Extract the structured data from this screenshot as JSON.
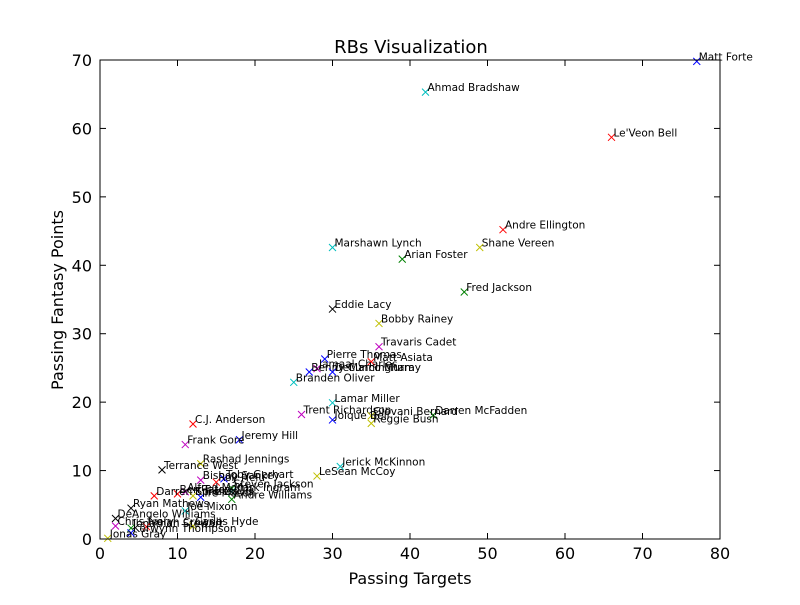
{
  "chart_data": {
    "type": "scatter",
    "title": "RBs Visualization",
    "xlabel": "Passing Targets",
    "ylabel": "Passing Fantasy Points",
    "xlim": [
      0,
      80
    ],
    "ylim": [
      0,
      70
    ],
    "xticks": [
      0,
      10,
      20,
      30,
      40,
      50,
      60,
      70,
      80
    ],
    "yticks": [
      0,
      10,
      20,
      30,
      40,
      50,
      60,
      70
    ],
    "marker": "x",
    "palette": [
      "#0000ff",
      "#008000",
      "#ff0000",
      "#00bfbf",
      "#bf00bf",
      "#bfbf00",
      "#000000"
    ],
    "points": [
      {
        "name": "Matt Forte",
        "x": 77,
        "y": 69.8,
        "color": "#0000ff"
      },
      {
        "name": "Ahmad Bradshaw",
        "x": 42,
        "y": 65.3,
        "color": "#00bfbf"
      },
      {
        "name": "Le'Veon Bell",
        "x": 66,
        "y": 58.7,
        "color": "#ff0000"
      },
      {
        "name": "Andre Ellington",
        "x": 52,
        "y": 45.2,
        "color": "#ff0000"
      },
      {
        "name": "Shane Vereen",
        "x": 49,
        "y": 42.6,
        "color": "#bfbf00"
      },
      {
        "name": "Marshawn Lynch",
        "x": 30,
        "y": 42.6,
        "color": "#00bfbf"
      },
      {
        "name": "Arian Foster",
        "x": 39,
        "y": 40.9,
        "color": "#008000"
      },
      {
        "name": "Fred Jackson",
        "x": 47,
        "y": 36.1,
        "color": "#008000"
      },
      {
        "name": "Eddie Lacy",
        "x": 30,
        "y": 33.6,
        "color": "#000000"
      },
      {
        "name": "Bobby Rainey",
        "x": 36,
        "y": 31.5,
        "color": "#bfbf00"
      },
      {
        "name": "Travaris Cadet",
        "x": 36,
        "y": 28.1,
        "color": "#bf00bf"
      },
      {
        "name": "Pierre Thomas",
        "x": 29,
        "y": 26.3,
        "color": "#0000ff"
      },
      {
        "name": "Matt Asiata",
        "x": 35,
        "y": 25.9,
        "color": "#ff0000"
      },
      {
        "name": "Jamaal Charles",
        "x": 28,
        "y": 24.9,
        "color": "#bf00bf"
      },
      {
        "name": "Benny Cunningham",
        "x": 27,
        "y": 24.4,
        "color": "#0000ff"
      },
      {
        "name": "DeMarco Murray",
        "x": 30,
        "y": 24.4,
        "color": "#0000ff"
      },
      {
        "name": "Branden Oliver",
        "x": 25,
        "y": 22.9,
        "color": "#00bfbf"
      },
      {
        "name": "Lamar Miller",
        "x": 30,
        "y": 19.9,
        "color": "#00bfbf"
      },
      {
        "name": "Darren McFadden",
        "x": 43,
        "y": 18.1,
        "color": "#008000"
      },
      {
        "name": "Trent Richardson",
        "x": 26,
        "y": 18.2,
        "color": "#bf00bf"
      },
      {
        "name": "Giovani Bernard",
        "x": 35,
        "y": 18.0,
        "color": "#bfbf00"
      },
      {
        "name": "Joique Bell",
        "x": 30,
        "y": 17.4,
        "color": "#0000ff"
      },
      {
        "name": "Reggie Bush",
        "x": 35,
        "y": 16.9,
        "color": "#bfbf00"
      },
      {
        "name": "C.J. Anderson",
        "x": 12,
        "y": 16.8,
        "color": "#ff0000"
      },
      {
        "name": "Jeremy Hill",
        "x": 18,
        "y": 14.5,
        "color": "#0000ff"
      },
      {
        "name": "Frank Gore",
        "x": 11,
        "y": 13.8,
        "color": "#bf00bf"
      },
      {
        "name": "Rashad Jennings",
        "x": 13,
        "y": 11.0,
        "color": "#bfbf00"
      },
      {
        "name": "Jerick McKinnon",
        "x": 31,
        "y": 10.6,
        "color": "#00bfbf"
      },
      {
        "name": "Terrance West",
        "x": 8,
        "y": 10.1,
        "color": "#000000"
      },
      {
        "name": "LeSean McCoy",
        "x": 28,
        "y": 9.2,
        "color": "#bfbf00"
      },
      {
        "name": "Bishop Sankey",
        "x": 13,
        "y": 8.6,
        "color": "#bf00bf"
      },
      {
        "name": "Toby Gerhart",
        "x": 16,
        "y": 8.8,
        "color": "#0000ff"
      },
      {
        "name": "Roy Helu",
        "x": 15,
        "y": 8.3,
        "color": "#ff0000"
      },
      {
        "name": "Steven Jackson",
        "x": 17,
        "y": 7.4,
        "color": "#008000"
      },
      {
        "name": "Mark Ingram",
        "x": 17,
        "y": 6.9,
        "color": "#00bfbf"
      },
      {
        "name": "Alfred Morris",
        "x": 11,
        "y": 6.9,
        "color": "#bf00bf"
      },
      {
        "name": "Ben Tate",
        "x": 10,
        "y": 6.6,
        "color": "#ff0000"
      },
      {
        "name": "Knile Davis",
        "x": 12,
        "y": 6.3,
        "color": "#bfbf00"
      },
      {
        "name": "Tre Mason",
        "x": 13,
        "y": 6.1,
        "color": "#0000ff"
      },
      {
        "name": "Darren Sproles",
        "x": 7,
        "y": 6.3,
        "color": "#ff0000"
      },
      {
        "name": "Andre Williams",
        "x": 17,
        "y": 5.8,
        "color": "#008000"
      },
      {
        "name": "Ryan Mathews",
        "x": 4,
        "y": 4.5,
        "color": "#000000"
      },
      {
        "name": "Joe Mixon",
        "x": 11,
        "y": 4.1,
        "color": "#00bfbf"
      },
      {
        "name": "DeAngelo Williams",
        "x": 2,
        "y": 3.0,
        "color": "#000000"
      },
      {
        "name": "Carlos Hyde",
        "x": 12,
        "y": 1.9,
        "color": "#bfbf00"
      },
      {
        "name": "Chris Ivory",
        "x": 2,
        "y": 1.9,
        "color": "#bf00bf"
      },
      {
        "name": "Isaiah Crowell",
        "x": 6,
        "y": 1.8,
        "color": "#ff0000"
      },
      {
        "name": "Jonathan Stewart",
        "x": 4,
        "y": 1.6,
        "color": "#008000"
      },
      {
        "name": "Kerwynn Thompson",
        "x": 4,
        "y": 0.9,
        "color": "#0000ff"
      },
      {
        "name": "Jonas Gray",
        "x": 1,
        "y": 0.1,
        "color": "#bfbf00"
      }
    ]
  }
}
